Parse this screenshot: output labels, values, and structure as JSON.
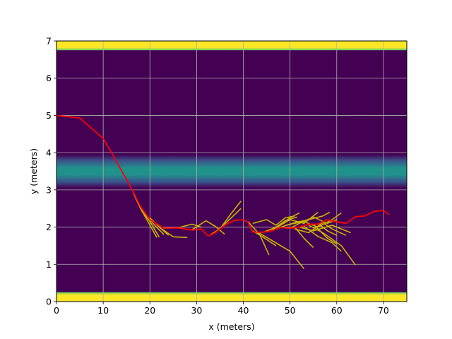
{
  "chart_data": {
    "type": "line",
    "title": "",
    "xlabel": "x (meters)",
    "ylabel": "y (meters)",
    "xlim": [
      0,
      75
    ],
    "ylim": [
      0,
      7
    ],
    "grid": true,
    "x_ticks": [
      "0",
      "10",
      "20",
      "30",
      "40",
      "50",
      "60",
      "70"
    ],
    "x_tick_values": [
      0,
      10,
      20,
      30,
      40,
      50,
      60,
      70
    ],
    "y_ticks": [
      "0",
      "1",
      "2",
      "3",
      "4",
      "5",
      "6",
      "7"
    ],
    "y_tick_values": [
      0,
      1,
      2,
      3,
      4,
      5,
      6,
      7
    ],
    "colors": {
      "background": "#440154",
      "lane_center": "#21918c",
      "lane_edge": "#3b528b",
      "road_edge": "#fde725",
      "road_edge_inner": "#5ec962",
      "grid": "#b0b0b0",
      "trajectory": "#ff0000",
      "candidates": "#c8b400"
    },
    "background_bands": [
      {
        "name": "top-road-edge",
        "y_start": 6.75,
        "y_end": 7.0
      },
      {
        "name": "lane-marking",
        "y_start": 3.05,
        "y_end": 3.95,
        "center": 3.5
      },
      {
        "name": "bottom-road-edge",
        "y_start": 0.0,
        "y_end": 0.25
      }
    ],
    "series": [
      {
        "name": "executed-trajectory",
        "x": [
          0,
          5,
          10,
          12,
          14,
          16,
          18,
          20,
          23,
          26,
          29,
          31,
          32.5,
          34,
          36,
          38,
          40,
          41,
          42,
          44,
          46,
          48,
          50,
          52,
          54,
          56,
          58,
          60,
          62,
          64,
          66,
          68,
          70,
          71.2
        ],
        "y": [
          5.0,
          4.93,
          4.38,
          3.95,
          3.5,
          3.05,
          2.55,
          2.2,
          1.97,
          1.98,
          1.92,
          1.95,
          1.76,
          1.85,
          2.05,
          2.18,
          2.2,
          2.13,
          1.87,
          1.86,
          1.9,
          1.99,
          1.97,
          2.0,
          2.08,
          2.08,
          2.2,
          2.14,
          2.1,
          2.28,
          2.3,
          2.42,
          2.45,
          2.33
        ]
      }
    ],
    "candidate_trajectories": [
      {
        "x": [
          16.5,
          18,
          20,
          21.5
        ],
        "y": [
          2.9,
          2.5,
          2.05,
          1.72
        ]
      },
      {
        "x": [
          18,
          20,
          22
        ],
        "y": [
          2.5,
          2.15,
          1.73
        ]
      },
      {
        "x": [
          19,
          21,
          23
        ],
        "y": [
          2.35,
          2.05,
          1.8
        ]
      },
      {
        "x": [
          20,
          22,
          24
        ],
        "y": [
          2.25,
          2.0,
          1.78
        ]
      },
      {
        "x": [
          22,
          25,
          28
        ],
        "y": [
          2.0,
          1.74,
          1.72
        ]
      },
      {
        "x": [
          26,
          29,
          31
        ],
        "y": [
          1.98,
          2.08,
          2.0
        ]
      },
      {
        "x": [
          29,
          32,
          34,
          36
        ],
        "y": [
          1.93,
          2.17,
          2.02,
          1.81
        ]
      },
      {
        "x": [
          33,
          35,
          37,
          39.5
        ],
        "y": [
          1.8,
          1.95,
          2.3,
          2.7
        ]
      },
      {
        "x": [
          34,
          37,
          39.5
        ],
        "y": [
          1.85,
          2.2,
          2.5
        ]
      },
      {
        "x": [
          41,
          43.5,
          45.5
        ],
        "y": [
          2.15,
          1.8,
          1.25
        ]
      },
      {
        "x": [
          42,
          44,
          47
        ],
        "y": [
          1.9,
          1.75,
          1.5
        ]
      },
      {
        "x": [
          43,
          46,
          50,
          53
        ],
        "y": [
          1.87,
          1.65,
          1.35,
          0.88
        ]
      },
      {
        "x": [
          42,
          45,
          47,
          49,
          51
        ],
        "y": [
          2.1,
          2.2,
          2.05,
          2.25,
          2.3
        ]
      },
      {
        "x": [
          44,
          47,
          50,
          52
        ],
        "y": [
          1.85,
          2.0,
          2.25,
          2.38
        ]
      },
      {
        "x": [
          46,
          49,
          51.5
        ],
        "y": [
          1.9,
          2.18,
          2.27
        ]
      },
      {
        "x": [
          47,
          50,
          53,
          56
        ],
        "y": [
          1.98,
          2.2,
          2.1,
          2.4
        ]
      },
      {
        "x": [
          48,
          51,
          54,
          57,
          58.5
        ],
        "y": [
          2.0,
          2.12,
          2.2,
          2.3,
          2.4
        ]
      },
      {
        "x": [
          49,
          53,
          56,
          59,
          61
        ],
        "y": [
          2.05,
          2.15,
          2.0,
          2.2,
          2.38
        ]
      },
      {
        "x": [
          50,
          52,
          55,
          58,
          60
        ],
        "y": [
          1.97,
          2.1,
          2.27,
          2.1,
          2.2
        ]
      },
      {
        "x": [
          51,
          54,
          57,
          59,
          62
        ],
        "y": [
          1.95,
          1.85,
          2.12,
          1.95,
          1.78
        ]
      },
      {
        "x": [
          52,
          55,
          59,
          63
        ],
        "y": [
          2.0,
          1.9,
          2.05,
          1.85
        ]
      },
      {
        "x": [
          53,
          56,
          59,
          61
        ],
        "y": [
          2.02,
          1.75,
          1.58,
          1.35
        ]
      },
      {
        "x": [
          54,
          57,
          61,
          64
        ],
        "y": [
          2.05,
          1.85,
          1.5,
          0.98
        ]
      },
      {
        "x": [
          55,
          58,
          60
        ],
        "y": [
          2.08,
          1.7,
          1.55
        ]
      },
      {
        "x": [
          51,
          53,
          55
        ],
        "y": [
          2.0,
          1.7,
          1.45
        ]
      },
      {
        "x": [
          56,
          58,
          60
        ],
        "y": [
          2.1,
          1.9,
          1.78
        ]
      }
    ]
  }
}
